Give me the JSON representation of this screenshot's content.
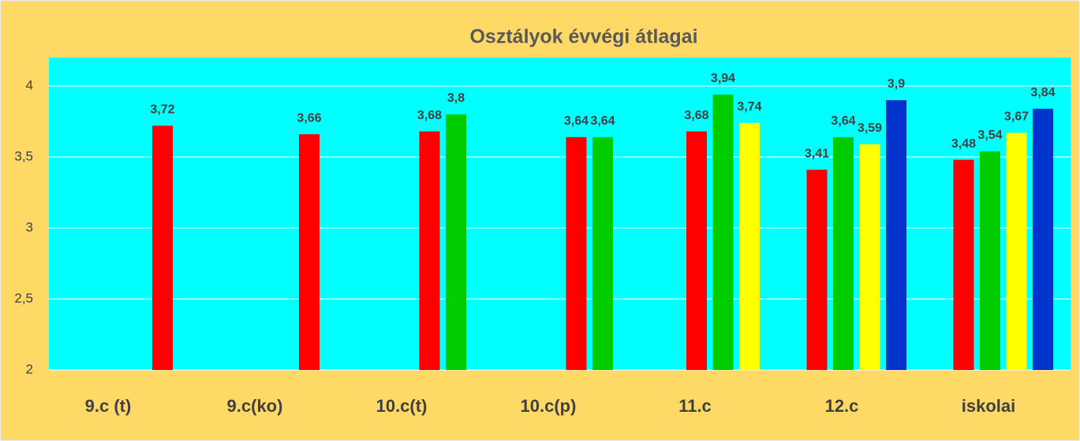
{
  "chart_data": {
    "type": "bar",
    "title": "Osztályok évvégi átlagai",
    "categories": [
      "9.c (t)",
      "9.c(ko)",
      "10.c(t)",
      "10.c(p)",
      "11.c",
      "12.c",
      "iskolai"
    ],
    "series": [
      {
        "color": "#ff0000",
        "values": [
          3.72,
          3.66,
          3.68,
          3.64,
          3.68,
          3.41,
          3.48
        ],
        "value_labels": [
          "3,72",
          "3,66",
          "3,68",
          "3,64",
          "3,68",
          "3,41",
          "3,48"
        ]
      },
      {
        "color": "#00cc00",
        "values": [
          null,
          null,
          3.8,
          3.64,
          3.94,
          3.64,
          3.54
        ],
        "value_labels": [
          null,
          null,
          "3,8",
          "3,64",
          "3,94",
          "3,64",
          "3,54"
        ]
      },
      {
        "color": "#ffff00",
        "values": [
          null,
          null,
          null,
          null,
          3.74,
          3.59,
          3.67
        ],
        "value_labels": [
          null,
          null,
          null,
          null,
          "3,74",
          "3,59",
          "3,67"
        ]
      },
      {
        "color": "#0033cc",
        "values": [
          null,
          null,
          null,
          null,
          null,
          3.9,
          3.84
        ],
        "value_labels": [
          null,
          null,
          null,
          null,
          null,
          "3,9",
          "3,84"
        ]
      }
    ],
    "ylim": [
      2,
      4.2
    ],
    "yticks": [
      2,
      {
        "value": 2.5,
        "label": "2,5"
      },
      3,
      {
        "value": 3.5,
        "label": "3,5"
      },
      4
    ],
    "grid": true
  }
}
